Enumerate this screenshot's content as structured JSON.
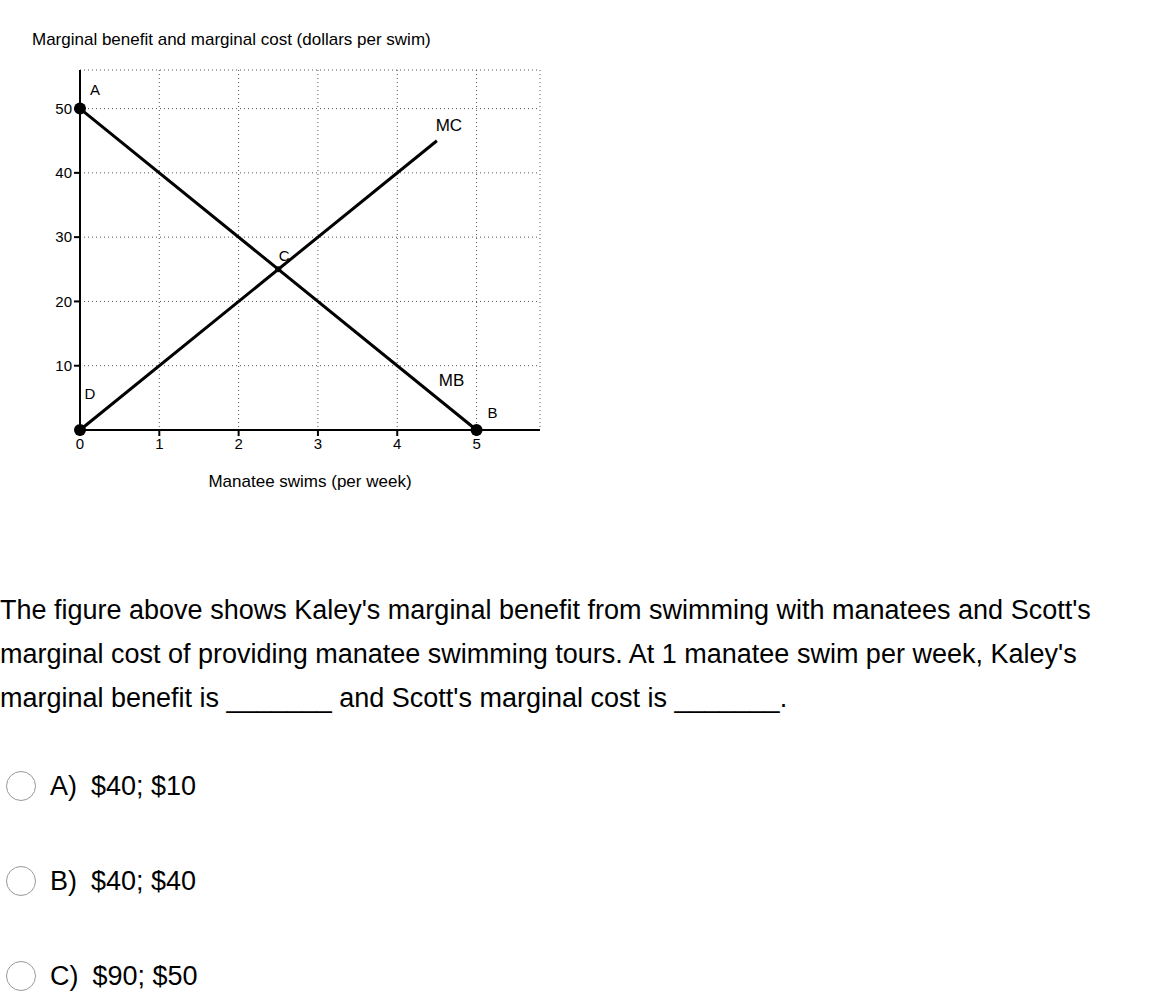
{
  "chart_data": {
    "type": "line",
    "ylabel": "Marginal benefit and marginal cost (dollars per swim)",
    "xlabel": "Manatee swims (per week)",
    "series": [
      {
        "name": "MB",
        "color": "#000000",
        "x": [
          0,
          5
        ],
        "values": [
          50,
          0
        ]
      },
      {
        "name": "MC",
        "color": "#000000",
        "x": [
          0,
          4.5
        ],
        "values": [
          0,
          45
        ]
      }
    ],
    "points": {
      "labels": [
        "A",
        "B",
        "C",
        "D"
      ],
      "x": [
        0,
        5,
        2.5,
        0
      ],
      "y": [
        50,
        0,
        25,
        0
      ],
      "color": "#000000"
    },
    "xlim": [
      0,
      5.8
    ],
    "xticks": [
      0,
      1,
      2,
      3,
      4,
      5
    ],
    "ylim": [
      0,
      56
    ],
    "yticks": [
      10,
      20,
      30,
      40,
      50
    ],
    "grid": true
  },
  "question": "The figure above shows Kaley's marginal benefit from swimming with manatees and Scott's marginal cost of providing manatee swimming tours. At 1 manatee swim per week, Kaley's marginal benefit is _______ and Scott's marginal cost is _______.",
  "options": [
    {
      "letter": "A)",
      "text": "$40; $10"
    },
    {
      "letter": "B)",
      "text": "$40; $40"
    },
    {
      "letter": "C)",
      "text": "$90; $50"
    }
  ]
}
